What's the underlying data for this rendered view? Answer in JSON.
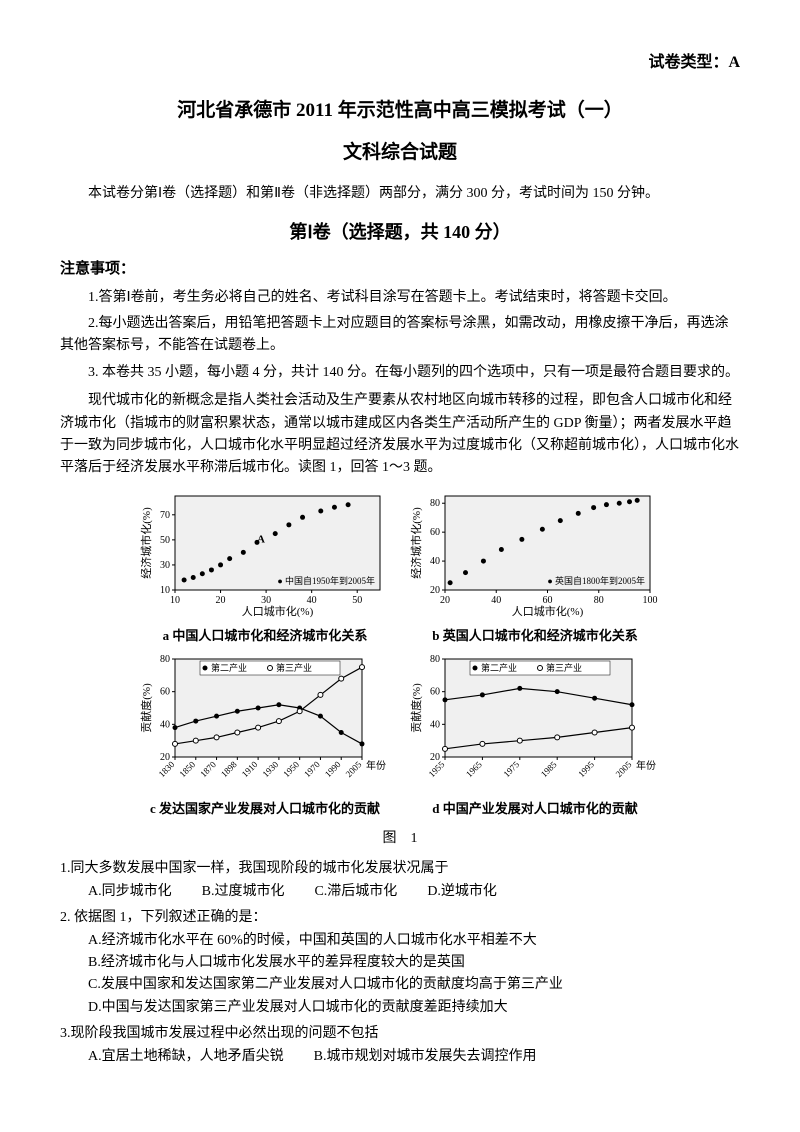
{
  "paperType": "试卷类型：A",
  "title": "河北省承德市 2011 年示范性高中高三模拟考试（一）",
  "subtitle": "文科综合试题",
  "intro": "本试卷分第Ⅰ卷（选择题）和第Ⅱ卷（非选择题）两部分，满分 300 分，考试时间为 150 分钟。",
  "sectionTitle": "第Ⅰ卷（选择题，共 140 分）",
  "noticeTitle": "注意事项：",
  "notice1": "1.答第Ⅰ卷前，考生务必将自己的姓名、考试科目涂写在答题卡上。考试结束时，将答题卡交回。",
  "notice2": "2.每小题选出答案后，用铅笔把答题卡上对应题目的答案标号涂黑，如需改动，用橡皮擦干净后，再选涂其他答案标号，不能答在试题卷上。",
  "notice3": "3. 本卷共 35 小题，每小题 4 分，共计 140 分。在每小题列的四个选项中，只有一项是最符合题目要求的。",
  "passage": "现代城市化的新概念是指人类社会活动及生产要素从农村地区向城市转移的过程，即包含人口城市化和经济城市化（指城市的财富积累状态，通常以城市建成区内各类生产活动所产生的 GDP 衡量）；两者发展水平趋于一致为同步城市化，人口城市化水平明显超过经济发展水平为过度城市化（又称超前城市化），人口城市化水平落后于经济发展水平称滞后城市化。读图 1，回答 1〜3 题。",
  "chartA": {
    "type": "scatter",
    "xlabel": "人口城市化(%)",
    "ylabel": "经济城市化(%)",
    "xlim": [
      10,
      55
    ],
    "xstep": 10,
    "ylim": [
      10,
      85
    ],
    "ystep": 20,
    "legend": "中国自1950年到2005年",
    "annotation": "A",
    "points": [
      [
        12,
        18
      ],
      [
        14,
        20
      ],
      [
        16,
        23
      ],
      [
        18,
        26
      ],
      [
        20,
        30
      ],
      [
        22,
        35
      ],
      [
        25,
        40
      ],
      [
        28,
        48
      ],
      [
        32,
        55
      ],
      [
        35,
        62
      ],
      [
        38,
        68
      ],
      [
        42,
        73
      ],
      [
        45,
        76
      ],
      [
        48,
        78
      ]
    ],
    "marker_color": "#000000",
    "bg_color": "#f0f0f0",
    "caption": "a 中国人口城市化和经济城市化关系"
  },
  "chartB": {
    "type": "scatter",
    "xlabel": "人口城市化(%)",
    "ylabel": "经济城市化(%)",
    "xlim": [
      20,
      100
    ],
    "xstep": 20,
    "ylim": [
      20,
      85
    ],
    "ystep": 20,
    "legend": "英国自1800年到2005年",
    "points": [
      [
        22,
        25
      ],
      [
        28,
        32
      ],
      [
        35,
        40
      ],
      [
        42,
        48
      ],
      [
        50,
        55
      ],
      [
        58,
        62
      ],
      [
        65,
        68
      ],
      [
        72,
        73
      ],
      [
        78,
        77
      ],
      [
        83,
        79
      ],
      [
        88,
        80
      ],
      [
        92,
        81
      ],
      [
        95,
        82
      ]
    ],
    "marker_color": "#000000",
    "bg_color": "#f0f0f0",
    "caption": "b 英国人口城市化和经济城市化关系"
  },
  "chartC": {
    "type": "line",
    "xlabel": "年份",
    "ylabel": "贡献度(%)",
    "xticks": [
      "1830",
      "1850",
      "1870",
      "1898",
      "1910",
      "1930",
      "1950",
      "1970",
      "1990",
      "2005"
    ],
    "ylim": [
      20,
      80
    ],
    "ystep": 20,
    "series": [
      {
        "name": "第二产业",
        "marker": "filled",
        "points": [
          [
            0,
            38
          ],
          [
            1,
            42
          ],
          [
            2,
            45
          ],
          [
            3,
            48
          ],
          [
            4,
            50
          ],
          [
            5,
            52
          ],
          [
            6,
            50
          ],
          [
            7,
            45
          ],
          [
            8,
            35
          ],
          [
            9,
            28
          ]
        ]
      },
      {
        "name": "第三产业",
        "marker": "open",
        "points": [
          [
            0,
            28
          ],
          [
            1,
            30
          ],
          [
            2,
            32
          ],
          [
            3,
            35
          ],
          [
            4,
            38
          ],
          [
            5,
            42
          ],
          [
            6,
            48
          ],
          [
            7,
            58
          ],
          [
            8,
            68
          ],
          [
            9,
            75
          ]
        ]
      }
    ],
    "line_color": "#000000",
    "bg_color": "#f0f0f0",
    "caption": "c 发达国家产业发展对人口城市化的贡献"
  },
  "chartD": {
    "type": "line",
    "xlabel": "年份",
    "ylabel": "贡献度(%)",
    "xticks": [
      "1955",
      "1965",
      "1975",
      "1985",
      "1995",
      "2005"
    ],
    "ylim": [
      20,
      80
    ],
    "ystep": 20,
    "series": [
      {
        "name": "第二产业",
        "marker": "filled",
        "points": [
          [
            0,
            55
          ],
          [
            1,
            58
          ],
          [
            2,
            62
          ],
          [
            3,
            60
          ],
          [
            4,
            56
          ],
          [
            5,
            52
          ]
        ]
      },
      {
        "name": "第三产业",
        "marker": "open",
        "points": [
          [
            0,
            25
          ],
          [
            1,
            28
          ],
          [
            2,
            30
          ],
          [
            3,
            32
          ],
          [
            4,
            35
          ],
          [
            5,
            38
          ]
        ]
      }
    ],
    "line_color": "#000000",
    "bg_color": "#f0f0f0",
    "caption": "d 中国产业发展对人口城市化的贡献"
  },
  "figLabel": "图　1",
  "q1": "1.同大多数发展中国家一样，我国现阶段的城市化发展状况属于",
  "q1a": "A.同步城市化",
  "q1b": "B.过度城市化",
  "q1c": "C.滞后城市化",
  "q1d": "D.逆城市化",
  "q2": "2. 依据图 1，下列叙述正确的是：",
  "q2a": "A.经济城市化水平在 60%的时候，中国和英国的人口城市化水平相差不大",
  "q2b": "B.经济城市化与人口城市化发展水平的差异程度较大的是英国",
  "q2c": "C.发展中国家和发达国家第二产业发展对人口城市化的贡献度均高于第三产业",
  "q2d": "D.中国与发达国家第三产业发展对人口城市化的贡献度差距持续加大",
  "q3": "3.现阶段我国城市发展过程中必然出现的问题不包括",
  "q3a": "A.宜居土地稀缺，人地矛盾尖锐",
  "q3b": "B.城市规划对城市发展失去调控作用"
}
